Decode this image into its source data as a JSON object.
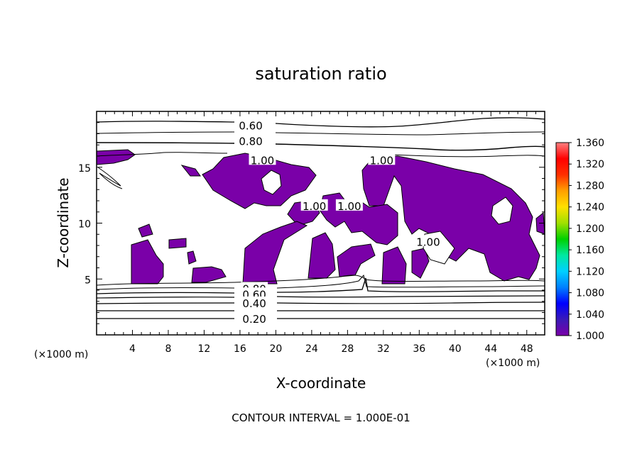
{
  "chart_data": {
    "type": "heatmap",
    "title": "saturation ratio",
    "xlabel": "X-coordinate",
    "ylabel": "Z-coordinate",
    "x_unit": "(×1000 m)",
    "z_unit": "(×1000 m)",
    "xlim": [
      0,
      50
    ],
    "ylim": [
      0,
      20
    ],
    "x_ticks": [
      4,
      8,
      12,
      16,
      20,
      24,
      28,
      32,
      36,
      40,
      44,
      48
    ],
    "y_ticks": [
      5,
      10,
      15
    ],
    "colorbar": {
      "min": 1.0,
      "max": 1.36,
      "ticks": [
        "1.360",
        "1.320",
        "1.280",
        "1.240",
        "1.200",
        "1.160",
        "1.120",
        "1.080",
        "1.040",
        "1.000"
      ],
      "colors": [
        "#7a00a8",
        "#3a1ab8",
        "#0000ff",
        "#0080ff",
        "#00d0ff",
        "#00e8a0",
        "#00d000",
        "#a0e000",
        "#ffe000",
        "#ffa000",
        "#ff3000",
        "#ff0000",
        "#ff8080"
      ]
    },
    "contour_labels": [
      {
        "text": "0.60",
        "x": 17.2,
        "z": 18.7
      },
      {
        "text": "0.80",
        "x": 17.2,
        "z": 17.3
      },
      {
        "text": "1.00",
        "x": 18.5,
        "z": 15.6
      },
      {
        "text": "1.00",
        "x": 31.8,
        "z": 15.6
      },
      {
        "text": "1.00",
        "x": 24.3,
        "z": 11.5
      },
      {
        "text": "1.00",
        "x": 28.2,
        "z": 11.5
      },
      {
        "text": "1.00",
        "x": 37.0,
        "z": 8.3
      },
      {
        "text": "0.80",
        "x": 17.6,
        "z": 4.1
      },
      {
        "text": "0.60",
        "x": 17.6,
        "z": 3.6
      },
      {
        "text": "0.40",
        "x": 17.6,
        "z": 2.8
      },
      {
        "text": "0.20",
        "x": 17.6,
        "z": 1.4
      }
    ],
    "contour_interval_note": "CONTOUR INTERVAL = 1.000E-01",
    "grid": false,
    "legend": "right colorbar"
  }
}
